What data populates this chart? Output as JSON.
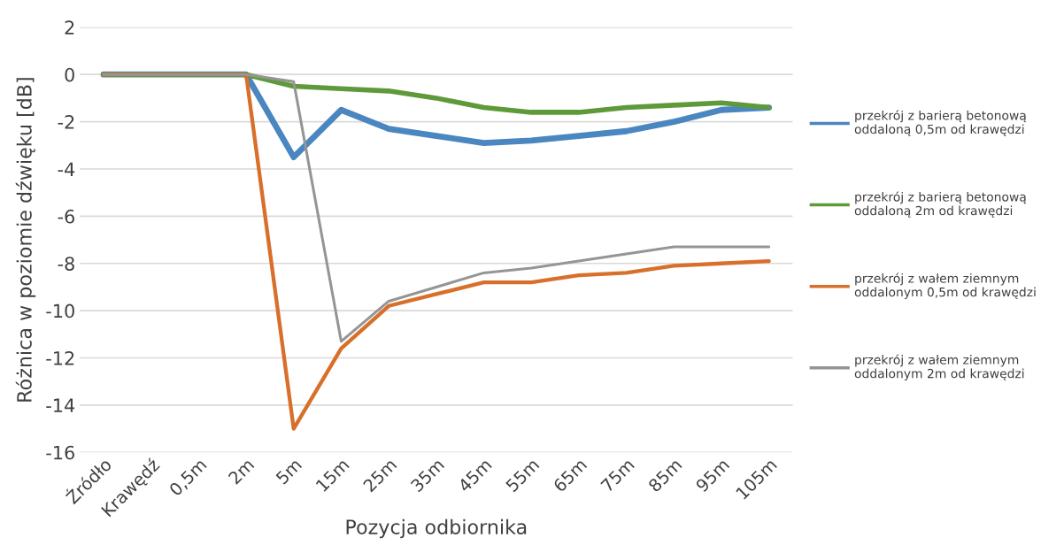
{
  "chart_data": {
    "type": "line",
    "xlabel": "Pozycja odbiornika",
    "ylabel": "Różnica w poziomie dźwięku [dB]",
    "categories": [
      "Źródło",
      "Krawędź",
      "0,5m",
      "2m",
      "5m",
      "15m",
      "25m",
      "35m",
      "45m",
      "55m",
      "65m",
      "75m",
      "85m",
      "95m",
      "105m"
    ],
    "series": [
      {
        "name": "przekrój z barierą betonową\noddaloną 0,5m od krawędzi",
        "color": "#4a86c0",
        "values": [
          0,
          0,
          0,
          0,
          -3.5,
          -1.5,
          -2.3,
          -2.6,
          -2.9,
          -2.8,
          -2.6,
          -2.4,
          -2.0,
          -1.5,
          -1.4
        ]
      },
      {
        "name": "przekrój z barierą betonową\noddaloną 2m od krawędzi",
        "color": "#5f9a3a",
        "values": [
          0,
          0,
          0,
          0,
          -0.5,
          -0.6,
          -0.7,
          -1.0,
          -1.4,
          -1.6,
          -1.6,
          -1.4,
          -1.3,
          -1.2,
          -1.4
        ]
      },
      {
        "name": "przekrój z wałem ziemnym\noddalonym 0,5m od krawędzi",
        "color": "#d86f2a",
        "values": [
          0,
          0,
          0,
          0,
          -15,
          -11.6,
          -9.8,
          -9.3,
          -8.8,
          -8.8,
          -8.5,
          -8.4,
          -8.1,
          -8.0,
          -7.9
        ]
      },
      {
        "name": "przekrój z wałem ziemnym\noddalonym 2m od krawędzi",
        "color": "#959595",
        "values": [
          0,
          0,
          0,
          0,
          -0.3,
          -11.3,
          -9.6,
          -9.0,
          -8.4,
          -8.2,
          -7.9,
          -7.6,
          -7.3,
          -7.3,
          -7.3
        ]
      }
    ],
    "ylim": [
      -16,
      2
    ],
    "yticks": [
      -16,
      -14,
      -12,
      -10,
      -8,
      -6,
      -4,
      -2,
      0,
      2
    ],
    "grid": "y",
    "legend": "right",
    "marker": "none",
    "line_style": "solid"
  }
}
